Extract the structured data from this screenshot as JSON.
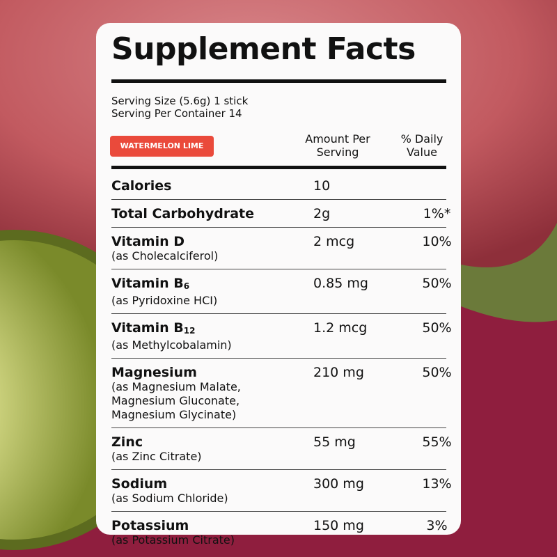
{
  "title": "Supplement Facts",
  "serving_size": "Serving Size (5.6g) 1 stick",
  "servings_per_container": "Serving Per Container 14",
  "flavor": "WATERMELON LIME",
  "columns": {
    "amount": [
      "Amount Per",
      "Serving"
    ],
    "daily_value": [
      "% Daily",
      "Value"
    ]
  },
  "rows": [
    {
      "name": "Calories",
      "amount": "10"
    },
    {
      "name": "Total Carbohydrate",
      "amount": "2g",
      "daily_value": "1%*"
    },
    {
      "name": "Vitamin D",
      "note": [
        "(as Cholecalciferol)"
      ],
      "amount": "2 mcg",
      "daily_value": "10%"
    },
    {
      "name": "Vitamin B",
      "sub": "6",
      "note": [
        "(as Pyridoxine HCI)"
      ],
      "amount": "0.85 mg",
      "daily_value": "50%"
    },
    {
      "name": "Vitamin B",
      "sub": "12",
      "note": [
        "(as Methylcobalamin)"
      ],
      "amount": "1.2 mcg",
      "daily_value": "50%"
    },
    {
      "name": "Magnesium",
      "note": [
        "(as Magnesium Malate,",
        "Magnesium Gluconate,",
        "Magnesium Glycinate)"
      ],
      "amount": "210 mg",
      "daily_value": "50%"
    },
    {
      "name": "Zinc",
      "note": [
        "(as Zinc Citrate)"
      ],
      "amount": "55 mg",
      "daily_value": "55%"
    },
    {
      "name": "Sodium",
      "note": [
        "(as Sodium Chloride)"
      ],
      "amount": "300 mg",
      "daily_value": "13%"
    },
    {
      "name": "Potassium",
      "note": [
        "(as Potassium Citrate)"
      ],
      "amount": "150 mg",
      "daily_value": "3%"
    }
  ]
}
